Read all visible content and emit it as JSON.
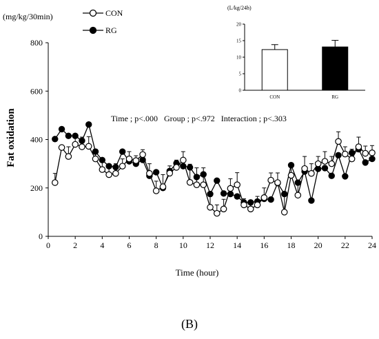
{
  "figure": {
    "y_unit": "(mg/kg/30min)",
    "y_title": "Fat oxidation",
    "x_title": "Time (hour)",
    "stats_text": "Time ; p<.000   Group ; p<.972   Interaction ; p<.303",
    "panel_label": "(B)",
    "legend": [
      {
        "label": "CON",
        "marker": "open-circle"
      },
      {
        "label": "RG",
        "marker": "filled-circle"
      }
    ]
  },
  "chart_data": [
    {
      "type": "line",
      "xlabel": "Time (hour)",
      "ylabel": "Fat oxidation",
      "xlim": [
        0,
        24
      ],
      "ylim": [
        0,
        800
      ],
      "x_ticks": [
        0,
        2,
        4,
        6,
        8,
        10,
        12,
        14,
        16,
        18,
        20,
        22,
        24
      ],
      "y_ticks": [
        0,
        200,
        400,
        600,
        800
      ],
      "grid": false,
      "legend_position": "top-left",
      "x": [
        0.5,
        1,
        1.5,
        2,
        2.5,
        3,
        3.5,
        4,
        4.5,
        5,
        5.5,
        6,
        6.5,
        7,
        7.5,
        8,
        8.5,
        9,
        9.5,
        10,
        10.5,
        11,
        11.5,
        12,
        12.5,
        13,
        13.5,
        14,
        14.5,
        15,
        15.5,
        16,
        16.5,
        17,
        17.5,
        18,
        18.5,
        19,
        19.5,
        20,
        20.5,
        21,
        21.5,
        22,
        22.5,
        23,
        23.5,
        24
      ],
      "series": [
        {
          "name": "CON",
          "marker": "open-circle",
          "color": "#000000",
          "values": [
            222,
            367,
            330,
            380,
            370,
            372,
            320,
            276,
            255,
            260,
            290,
            320,
            313,
            338,
            260,
            188,
            205,
            261,
            285,
            315,
            223,
            213,
            213,
            120,
            95,
            113,
            198,
            213,
            130,
            113,
            130,
            160,
            232,
            222,
            100,
            252,
            170,
            280,
            260,
            300,
            310,
            300,
            392,
            340,
            320,
            370,
            343,
            345
          ],
          "error": [
            38,
            0,
            40,
            30,
            40,
            40,
            40,
            40,
            30,
            40,
            30,
            30,
            20,
            20,
            40,
            40,
            50,
            30,
            30,
            35,
            75,
            70,
            70,
            45,
            35,
            40,
            40,
            50,
            25,
            30,
            35,
            40,
            30,
            40,
            75,
            50,
            50,
            50,
            40,
            30,
            40,
            30,
            40,
            30,
            40,
            40,
            30,
            30
          ]
        },
        {
          "name": "RG",
          "marker": "filled-circle",
          "color": "#000000",
          "values": [
            402,
            443,
            415,
            415,
            395,
            462,
            350,
            315,
            290,
            286,
            350,
            310,
            300,
            316,
            250,
            265,
            200,
            270,
            302,
            290,
            285,
            245,
            256,
            175,
            230,
            177,
            175,
            165,
            140,
            140,
            144,
            155,
            152,
            220,
            175,
            294,
            222,
            268,
            148,
            279,
            282,
            250,
            335,
            248,
            345,
            360,
            305,
            320
          ]
        }
      ],
      "inset": {
        "type": "bar",
        "unit": "(L/kg/24h)",
        "categories": [
          "CON",
          "RG"
        ],
        "values": [
          12.3,
          13.1
        ],
        "error": [
          1.5,
          2.0
        ],
        "colors": [
          "#ffffff",
          "#000000"
        ],
        "ylim": [
          0,
          20
        ],
        "y_ticks": [
          0,
          5,
          10,
          15,
          20
        ]
      }
    }
  ]
}
